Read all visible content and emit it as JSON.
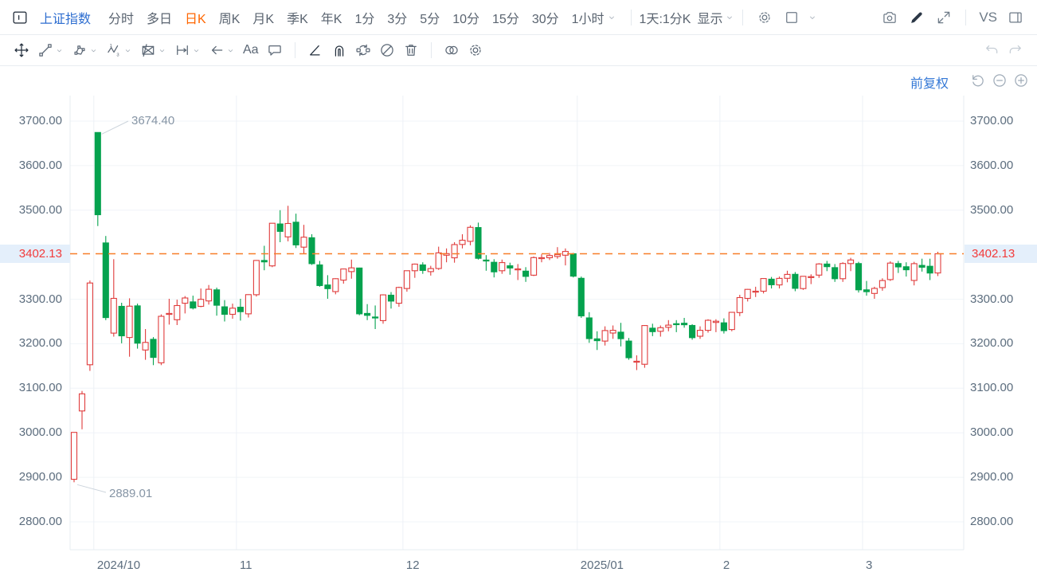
{
  "header": {
    "symbol": "上证指数",
    "tabs": [
      {
        "label": "分时"
      },
      {
        "label": "多日"
      },
      {
        "label": "日K",
        "active": true
      },
      {
        "label": "周K"
      },
      {
        "label": "月K"
      },
      {
        "label": "季K"
      },
      {
        "label": "年K"
      },
      {
        "label": "1分"
      },
      {
        "label": "3分"
      },
      {
        "label": "5分"
      },
      {
        "label": "10分"
      },
      {
        "label": "15分"
      },
      {
        "label": "30分"
      },
      {
        "label": "1小时",
        "chevron": true
      }
    ],
    "period_display": {
      "label": "1天:1分K",
      "action": "显示"
    },
    "vs_label": "VS",
    "right_icons": [
      "settings-gear",
      "layout-square",
      "camera",
      "draw-pencil",
      "fullscreen-expand",
      "right-panel"
    ]
  },
  "toolbar": {
    "groups": [
      [
        {
          "name": "move-crosshair",
          "dark": true
        },
        {
          "name": "trend-line",
          "chevron": true
        },
        {
          "name": "shape-polygon",
          "chevron": true
        },
        {
          "name": "elliott-wave",
          "chevron": true
        },
        {
          "name": "pattern-rectangle",
          "chevron": true
        },
        {
          "name": "measure-range",
          "chevron": true
        },
        {
          "name": "arrow-left",
          "chevron": true
        },
        {
          "name": "text-tool",
          "label": "Aa"
        },
        {
          "name": "comment-bubble"
        }
      ],
      [
        {
          "name": "angle-line",
          "dark": true
        },
        {
          "name": "magnet",
          "dark": true
        },
        {
          "name": "sync-drawings"
        },
        {
          "name": "hide-drawings"
        },
        {
          "name": "delete-trash"
        }
      ],
      [
        {
          "name": "compare-overlay"
        },
        {
          "name": "drawing-settings-gear"
        }
      ]
    ],
    "history": [
      {
        "name": "undo"
      },
      {
        "name": "redo"
      }
    ]
  },
  "chart_controls": {
    "adjustment_label": "前复权",
    "icons": [
      "reset-view",
      "zoom-out-circle",
      "zoom-in-circle"
    ]
  },
  "chart_data": {
    "type": "candlestick",
    "symbol": "上证指数",
    "period": "日K",
    "current_price": "3402.13",
    "current_price_value": 3402.13,
    "annotations": {
      "high": {
        "label": "3674.40",
        "value": 3674.4,
        "candle_index": 3
      },
      "low": {
        "label": "2889.01",
        "value": 2889.01,
        "candle_index": 0
      }
    },
    "y_axis": {
      "ticks": [
        {
          "label": "3700.00",
          "value": 3700
        },
        {
          "label": "3600.00",
          "value": 3600
        },
        {
          "label": "3500.00",
          "value": 3500
        },
        {
          "label": "3300.00",
          "value": 3300
        },
        {
          "label": "3200.00",
          "value": 3200
        },
        {
          "label": "3100.00",
          "value": 3100
        },
        {
          "label": "3000.00",
          "value": 3000
        },
        {
          "label": "2900.00",
          "value": 2900
        },
        {
          "label": "2800.00",
          "value": 2800
        }
      ],
      "ylim": [
        2737,
        3757
      ]
    },
    "x_axis": {
      "month_ticks": [
        {
          "label": "2024/10",
          "index": 3
        },
        {
          "label": "11",
          "index": 21
        },
        {
          "label": "12",
          "index": 42
        },
        {
          "label": "2025/01",
          "index": 64
        },
        {
          "label": "2",
          "index": 82
        },
        {
          "label": "3",
          "index": 100
        }
      ]
    },
    "colors": {
      "up": "#e03c3c",
      "down": "#05a24e",
      "price_line": "#f87d28",
      "price_text": "#f23b3b",
      "price_bg": "#e4effb",
      "grid": "#f0f4f8",
      "month_grid": "#edf1f6",
      "border": "#e7ecf1",
      "annotation": "#8695a5",
      "connector": "#ccd4dc"
    },
    "columns": [
      "date",
      "open",
      "high",
      "low",
      "close"
    ],
    "candles": [
      [
        "2024-09-26",
        2895.6,
        3001.2,
        2889.01,
        3000.95
      ],
      [
        "2024-09-27",
        3049,
        3094,
        3008,
        3087.53
      ],
      [
        "2024-09-30",
        3153,
        3342,
        3139,
        3336.5
      ],
      [
        "2024-10-08",
        3674.4,
        3674.4,
        3464.3,
        3489.78
      ],
      [
        "2024-10-09",
        3426.5,
        3442,
        3253,
        3258.86
      ],
      [
        "2024-10-10",
        3224,
        3390,
        3216,
        3301.93
      ],
      [
        "2024-10-11",
        3284,
        3292,
        3201,
        3217.74
      ],
      [
        "2024-10-14",
        3214,
        3302,
        3171,
        3284.32
      ],
      [
        "2024-10-15",
        3285,
        3290,
        3189,
        3201.29
      ],
      [
        "2024-10-16",
        3186,
        3233,
        3164,
        3202.95
      ],
      [
        "2024-10-17",
        3210,
        3215,
        3152,
        3169.38
      ],
      [
        "2024-10-18",
        3157,
        3266,
        3152,
        3261.56
      ],
      [
        "2024-10-21",
        3268,
        3301,
        3243,
        3268.11
      ],
      [
        "2024-10-22",
        3254,
        3299,
        3242,
        3285.87
      ],
      [
        "2024-10-23",
        3291,
        3307,
        3268,
        3302.8
      ],
      [
        "2024-10-24",
        3294,
        3308,
        3277,
        3280.26
      ],
      [
        "2024-10-25",
        3284,
        3324,
        3282,
        3299.7
      ],
      [
        "2024-10-28",
        3296,
        3332,
        3288,
        3322.2
      ],
      [
        "2024-10-29",
        3321,
        3326,
        3263,
        3286.41
      ],
      [
        "2024-10-30",
        3283,
        3298,
        3250,
        3266.24
      ],
      [
        "2024-10-31",
        3266,
        3290,
        3256,
        3279.82
      ],
      [
        "2024-11-01",
        3282,
        3301,
        3252,
        3272.01
      ],
      [
        "2024-11-04",
        3267,
        3311,
        3259,
        3310.21
      ],
      [
        "2024-11-05",
        3310,
        3388,
        3306,
        3386.99
      ],
      [
        "2024-11-06",
        3387,
        3420,
        3365,
        3383.81
      ],
      [
        "2024-11-07",
        3375,
        3471,
        3372,
        3470.66
      ],
      [
        "2024-11-08",
        3469,
        3500,
        3428,
        3452.3
      ],
      [
        "2024-11-11",
        3440,
        3509.8,
        3430,
        3470.07
      ],
      [
        "2024-11-12",
        3473,
        3492,
        3415,
        3421.97
      ],
      [
        "2024-11-13",
        3417,
        3467,
        3403,
        3439.28
      ],
      [
        "2024-11-14",
        3438,
        3446,
        3377,
        3379.84
      ],
      [
        "2024-11-15",
        3377,
        3386,
        3328,
        3330.73
      ],
      [
        "2024-11-18",
        3332,
        3354,
        3301,
        3323.85
      ],
      [
        "2024-11-19",
        3317,
        3347,
        3311,
        3346.01
      ],
      [
        "2024-11-20",
        3343,
        3369,
        3335,
        3367.99
      ],
      [
        "2024-11-21",
        3362,
        3389,
        3346,
        3370.4
      ],
      [
        "2024-11-22",
        3370,
        3371,
        3264,
        3267.19
      ],
      [
        "2024-11-25",
        3268,
        3289,
        3253,
        3263.76
      ],
      [
        "2024-11-26",
        3260,
        3286,
        3233,
        3259.76
      ],
      [
        "2024-11-27",
        3252,
        3311,
        3245,
        3309.78
      ],
      [
        "2024-11-28",
        3309,
        3316,
        3279,
        3295.7
      ],
      [
        "2024-11-29",
        3291,
        3328,
        3283,
        3326.46
      ],
      [
        "2024-12-02",
        3324,
        3364,
        3317,
        3363.98
      ],
      [
        "2024-12-03",
        3364,
        3380,
        3348,
        3378.81
      ],
      [
        "2024-12-04",
        3377,
        3383,
        3357,
        3364.65
      ],
      [
        "2024-12-05",
        3362,
        3375,
        3353,
        3368.86
      ],
      [
        "2024-12-06",
        3369,
        3418,
        3366,
        3404.08
      ],
      [
        "2024-12-09",
        3399,
        3414,
        3383,
        3402.53
      ],
      [
        "2024-12-10",
        3393,
        3428,
        3382,
        3422.66
      ],
      [
        "2024-12-11",
        3423,
        3446,
        3414,
        3432.49
      ],
      [
        "2024-12-12",
        3430,
        3466,
        3421,
        3461.5
      ],
      [
        "2024-12-13",
        3461,
        3472,
        3389,
        3391.88
      ],
      [
        "2024-12-16",
        3388,
        3399,
        3364,
        3386.33
      ],
      [
        "2024-12-17",
        3383,
        3390,
        3349,
        3361.49
      ],
      [
        "2024-12-18",
        3364,
        3389,
        3357,
        3382.21
      ],
      [
        "2024-12-19",
        3375,
        3382,
        3355,
        3370.03
      ],
      [
        "2024-12-20",
        3366,
        3379,
        3343,
        3368.07
      ],
      [
        "2024-12-23",
        3363,
        3372,
        3339,
        3351.26
      ],
      [
        "2024-12-24",
        3354,
        3396,
        3352,
        3393.53
      ],
      [
        "2024-12-25",
        3393,
        3401,
        3383,
        3393.36
      ],
      [
        "2024-12-26",
        3393,
        3404,
        3388,
        3398.08
      ],
      [
        "2024-12-27",
        3396,
        3417,
        3391,
        3400.14
      ],
      [
        "2024-12-30",
        3399,
        3414,
        3376,
        3407.33
      ],
      [
        "2024-12-31",
        3402,
        3404,
        3349,
        3351.76
      ],
      [
        "2025-01-02",
        3347,
        3351,
        3258,
        3262.56
      ],
      [
        "2025-01-03",
        3258,
        3271,
        3202,
        3211.43
      ],
      [
        "2025-01-06",
        3211,
        3228,
        3186,
        3206.92
      ],
      [
        "2025-01-07",
        3206,
        3239,
        3196,
        3229.64
      ],
      [
        "2025-01-08",
        3224,
        3241,
        3211,
        3230.17
      ],
      [
        "2025-01-09",
        3226,
        3247,
        3194,
        3211.39
      ],
      [
        "2025-01-10",
        3206,
        3213,
        3164,
        3168.52
      ],
      [
        "2025-01-13",
        3159,
        3174,
        3140.9,
        3160.76
      ],
      [
        "2025-01-14",
        3154,
        3242,
        3146,
        3240.94
      ],
      [
        "2025-01-15",
        3235,
        3245,
        3217,
        3227.12
      ],
      [
        "2025-01-16",
        3228,
        3241,
        3216,
        3236.03
      ],
      [
        "2025-01-17",
        3237,
        3253,
        3228,
        3241.82
      ],
      [
        "2025-01-20",
        3245,
        3253,
        3226,
        3244.38
      ],
      [
        "2025-01-21",
        3246,
        3258,
        3236,
        3242.62
      ],
      [
        "2025-01-22",
        3241,
        3244,
        3209,
        3213.62
      ],
      [
        "2025-01-23",
        3217,
        3239,
        3211,
        3230.16
      ],
      [
        "2025-01-24",
        3230,
        3255,
        3225,
        3252.63
      ],
      [
        "2025-01-27",
        3248,
        3255,
        3226,
        3250.6
      ],
      [
        "2025-02-05",
        3247,
        3257,
        3223,
        3229.49
      ],
      [
        "2025-02-06",
        3232,
        3271,
        3228,
        3270.66
      ],
      [
        "2025-02-07",
        3270,
        3310,
        3262,
        3303.67
      ],
      [
        "2025-02-10",
        3302,
        3323,
        3295,
        3322.17
      ],
      [
        "2025-02-11",
        3318,
        3328,
        3305,
        3318.06
      ],
      [
        "2025-02-12",
        3318,
        3347,
        3313,
        3346.39
      ],
      [
        "2025-02-13",
        3345,
        3350,
        3324,
        3332.48
      ],
      [
        "2025-02-14",
        3332,
        3351,
        3324,
        3346.72
      ],
      [
        "2025-02-17",
        3347,
        3364,
        3338,
        3355.83
      ],
      [
        "2025-02-18",
        3356,
        3361,
        3318,
        3324.49
      ],
      [
        "2025-02-19",
        3324,
        3352,
        3321,
        3351.54
      ],
      [
        "2025-02-20",
        3350,
        3356,
        3334,
        3350.78
      ],
      [
        "2025-02-21",
        3354,
        3381,
        3348,
        3379.11
      ],
      [
        "2025-02-24",
        3379,
        3386,
        3363,
        3373.03
      ],
      [
        "2025-02-25",
        3371,
        3379,
        3339,
        3346.04
      ],
      [
        "2025-02-26",
        3346,
        3383,
        3339,
        3380.21
      ],
      [
        "2025-02-27",
        3380,
        3393,
        3363,
        3388.06
      ],
      [
        "2025-02-28",
        3380,
        3384,
        3315,
        3320.9
      ],
      [
        "2025-03-03",
        3321,
        3341,
        3308,
        3316.93
      ],
      [
        "2025-03-04",
        3313,
        3328,
        3301,
        3324.21
      ],
      [
        "2025-03-05",
        3326,
        3347,
        3319,
        3341.96
      ],
      [
        "2025-03-06",
        3344,
        3385,
        3341,
        3381.1
      ],
      [
        "2025-03-07",
        3380,
        3386,
        3359,
        3372.55
      ],
      [
        "2025-03-10",
        3373,
        3383,
        3351,
        3366.16
      ],
      [
        "2025-03-11",
        3342,
        3384,
        3331,
        3379.83
      ],
      [
        "2025-03-12",
        3376,
        3391,
        3362,
        3371.92
      ],
      [
        "2025-03-13",
        3374,
        3391,
        3343,
        3358.73
      ],
      [
        "2025-03-14",
        3359,
        3406.5,
        3352,
        3402.13
      ]
    ]
  }
}
